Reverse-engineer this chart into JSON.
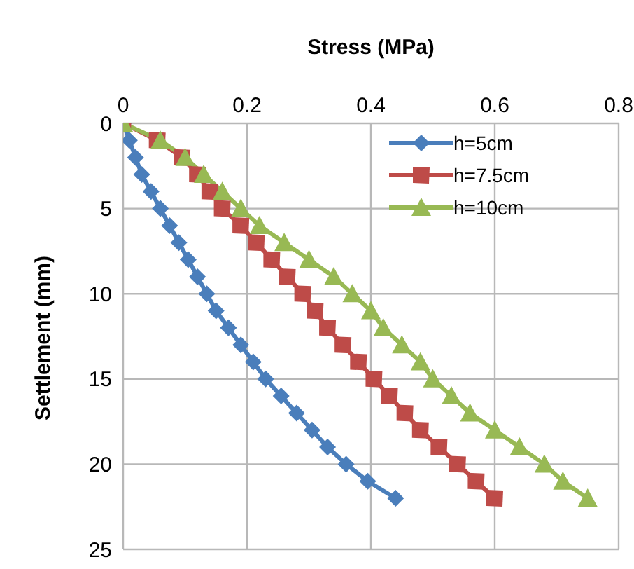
{
  "chart_data": {
    "type": "line",
    "xlabel": "Stress (MPa)",
    "ylabel": "Settlement (mm)",
    "xlim": [
      0,
      0.8
    ],
    "xticks": [
      0,
      0.2,
      0.4,
      0.6,
      0.8
    ],
    "ylim": [
      25,
      0
    ],
    "yticks": [
      0,
      5,
      10,
      15,
      20,
      25
    ],
    "grid": true,
    "legend": "top right",
    "series": [
      {
        "name": "h=5cm",
        "color": "#4a7ebb",
        "marker": "diamond",
        "x": [
          0,
          0.01,
          0.02,
          0.03,
          0.045,
          0.06,
          0.075,
          0.09,
          0.105,
          0.12,
          0.135,
          0.15,
          0.17,
          0.19,
          0.21,
          0.23,
          0.255,
          0.28,
          0.305,
          0.33,
          0.36,
          0.395,
          0.44
        ],
        "values": [
          0,
          1,
          2,
          3,
          4,
          5,
          6,
          7,
          8,
          9,
          10,
          11,
          12,
          13,
          14,
          15,
          16,
          17,
          18,
          19,
          20,
          21,
          22
        ]
      },
      {
        "name": "h=7.5cm",
        "color": "#be4b48",
        "marker": "square",
        "x": [
          0,
          0.055,
          0.095,
          0.12,
          0.14,
          0.16,
          0.19,
          0.215,
          0.24,
          0.265,
          0.29,
          0.31,
          0.33,
          0.355,
          0.38,
          0.405,
          0.43,
          0.455,
          0.48,
          0.51,
          0.54,
          0.57,
          0.6
        ],
        "values": [
          0,
          1,
          2,
          3,
          4,
          5,
          6,
          7,
          8,
          9,
          10,
          11,
          12,
          13,
          14,
          15,
          16,
          17,
          18,
          19,
          20,
          21,
          22
        ]
      },
      {
        "name": "h=10cm",
        "color": "#98b954",
        "marker": "triangle",
        "x": [
          0,
          0.06,
          0.1,
          0.13,
          0.16,
          0.19,
          0.22,
          0.26,
          0.3,
          0.34,
          0.37,
          0.4,
          0.42,
          0.45,
          0.48,
          0.5,
          0.53,
          0.56,
          0.6,
          0.64,
          0.68,
          0.71,
          0.75
        ],
        "values": [
          0,
          1,
          2,
          3,
          4,
          5,
          6,
          7,
          8,
          9,
          10,
          11,
          12,
          13,
          14,
          15,
          16,
          17,
          18,
          19,
          20,
          21,
          22
        ]
      }
    ]
  }
}
